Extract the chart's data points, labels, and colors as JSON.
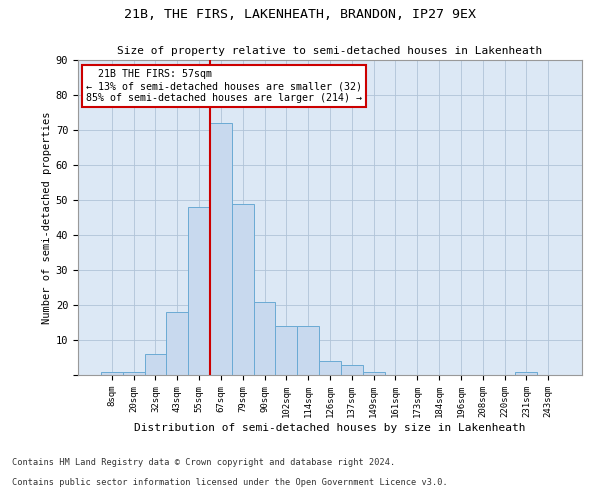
{
  "title": "21B, THE FIRS, LAKENHEATH, BRANDON, IP27 9EX",
  "subtitle": "Size of property relative to semi-detached houses in Lakenheath",
  "xlabel": "Distribution of semi-detached houses by size in Lakenheath",
  "ylabel": "Number of semi-detached properties",
  "bar_color": "#c8d9ee",
  "bar_edge_color": "#6aaad4",
  "grid_color": "#b0c4d8",
  "bg_color": "#dce8f5",
  "annotation_box_color": "#cc0000",
  "vline_color": "#cc0000",
  "categories": [
    "8sqm",
    "20sqm",
    "32sqm",
    "43sqm",
    "55sqm",
    "67sqm",
    "79sqm",
    "90sqm",
    "102sqm",
    "114sqm",
    "126sqm",
    "137sqm",
    "149sqm",
    "161sqm",
    "173sqm",
    "184sqm",
    "196sqm",
    "208sqm",
    "220sqm",
    "231sqm",
    "243sqm"
  ],
  "values": [
    1,
    1,
    6,
    18,
    48,
    72,
    49,
    21,
    14,
    14,
    4,
    3,
    1,
    0,
    0,
    0,
    0,
    0,
    0,
    1,
    0
  ],
  "ylim": [
    0,
    90
  ],
  "yticks": [
    0,
    10,
    20,
    30,
    40,
    50,
    60,
    70,
    80,
    90
  ],
  "property_label": "21B THE FIRS: 57sqm",
  "pct_smaller": 13,
  "pct_larger": 85,
  "count_smaller": 32,
  "count_larger": 214,
  "vline_bin_index": 4.5,
  "footnote1": "Contains HM Land Registry data © Crown copyright and database right 2024.",
  "footnote2": "Contains public sector information licensed under the Open Government Licence v3.0."
}
